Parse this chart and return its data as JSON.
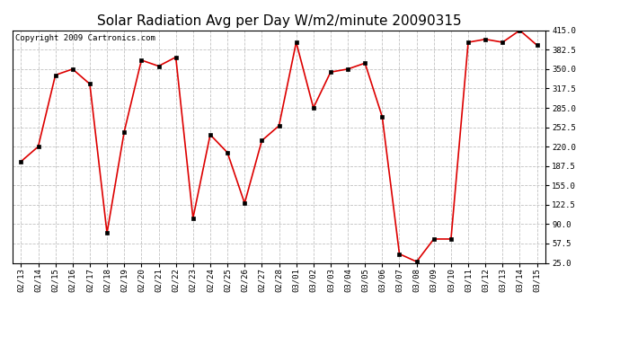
{
  "title": "Solar Radiation Avg per Day W/m2/minute 20090315",
  "copyright": "Copyright 2009 Cartronics.com",
  "dates": [
    "02/13",
    "02/14",
    "02/15",
    "02/16",
    "02/17",
    "02/18",
    "02/19",
    "02/20",
    "02/21",
    "02/22",
    "02/23",
    "02/24",
    "02/25",
    "02/26",
    "02/27",
    "02/28",
    "03/01",
    "03/02",
    "03/03",
    "03/04",
    "03/05",
    "03/06",
    "03/07",
    "03/08",
    "03/09",
    "03/10",
    "03/11",
    "03/12",
    "03/13",
    "03/14",
    "03/15"
  ],
  "values": [
    195,
    220,
    340,
    350,
    325,
    75,
    245,
    365,
    355,
    370,
    100,
    240,
    210,
    125,
    230,
    255,
    395,
    285,
    345,
    350,
    360,
    270,
    40,
    27,
    65,
    65,
    395,
    400,
    395,
    415,
    390
  ],
  "line_color": "#dd0000",
  "marker_color": "#000000",
  "bg_color": "#ffffff",
  "plot_bg_color": "#ffffff",
  "grid_color": "#bbbbbb",
  "ylim": [
    25.0,
    415.0
  ],
  "yticks": [
    25.0,
    57.5,
    90.0,
    122.5,
    155.0,
    187.5,
    220.0,
    252.5,
    285.0,
    317.5,
    350.0,
    382.5,
    415.0
  ],
  "title_fontsize": 11,
  "copyright_fontsize": 6.5,
  "tick_fontsize": 6.5
}
